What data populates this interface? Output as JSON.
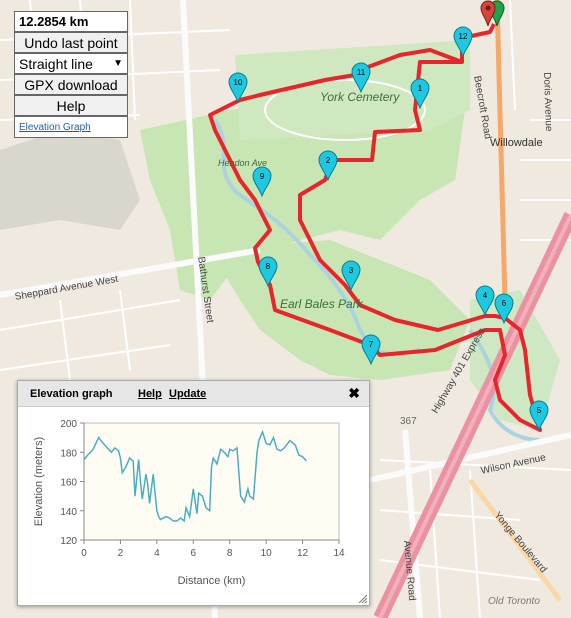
{
  "controls": {
    "distance": "12.2854 km",
    "undo_label": "Undo last point",
    "route_mode": "Straight line",
    "gpx_label": "GPX download",
    "help_label": "Help",
    "elevation_link": "Elevation Graph"
  },
  "map": {
    "labels": {
      "york_cemetery": "York Cemetery",
      "beecroft": "Beecroft Road",
      "willowdale": "Willowdale",
      "doris": "Doris Avenue",
      "hendon": "Hendon Ave",
      "sheppard": "Sheppard Avenue West",
      "bathurst": "Bathurst Street",
      "earl_bales": "Earl Bales Park",
      "hwy401": "Highway 401 Express",
      "wilson": "Wilson Avenue",
      "yonge": "Yonge Boulevard",
      "avenue_road": "Avenue Road",
      "old_toronto": "Old Toronto",
      "route_367": "367"
    },
    "markers": [
      "1",
      "2",
      "3",
      "4",
      "5",
      "6",
      "7",
      "8",
      "9",
      "10",
      "11",
      "12"
    ],
    "colors": {
      "route": "#e8252a",
      "marker": "#1ec8e0",
      "water": "#aad3df",
      "park": "#c8e6b4"
    }
  },
  "elevation_panel": {
    "title": "Elevation graph",
    "help": "Help",
    "update": "Update",
    "close_icon": "close-icon"
  },
  "chart_data": {
    "type": "line",
    "xlabel": "Distance (km)",
    "ylabel": "Elevation (meters)",
    "xlim": [
      0,
      14
    ],
    "ylim": [
      120,
      200
    ],
    "xticks": [
      0,
      2,
      4,
      6,
      8,
      10,
      12,
      14
    ],
    "yticks": [
      120,
      140,
      160,
      180,
      200
    ],
    "grid": false,
    "series": [
      {
        "color": "#4bacc6",
        "x": [
          0,
          0.2,
          0.5,
          0.8,
          1.0,
          1.2,
          1.5,
          1.7,
          1.9,
          2.0,
          2.1,
          2.3,
          2.5,
          2.7,
          2.8,
          3.0,
          3.1,
          3.2,
          3.4,
          3.5,
          3.6,
          3.8,
          4.0,
          4.1,
          4.2,
          4.5,
          4.7,
          4.9,
          5.1,
          5.3,
          5.5,
          5.6,
          5.8,
          6.0,
          6.2,
          6.3,
          6.5,
          6.7,
          6.9,
          7.0,
          7.1,
          7.3,
          7.5,
          7.7,
          7.9,
          8.0,
          8.2,
          8.4,
          8.6,
          8.8,
          9.0,
          9.1,
          9.3,
          9.5,
          9.6,
          9.8,
          10.0,
          10.2,
          10.4,
          10.6,
          10.8,
          11.0,
          11.3,
          11.6,
          11.8,
          12.0,
          12.2
        ],
        "y": [
          175,
          178,
          182,
          190,
          187,
          184,
          180,
          183,
          181,
          176,
          166,
          170,
          176,
          174,
          150,
          175,
          160,
          148,
          165,
          158,
          145,
          165,
          140,
          136,
          134,
          136,
          135,
          133,
          133,
          135,
          133,
          142,
          136,
          155,
          138,
          152,
          150,
          142,
          140,
          170,
          176,
          172,
          182,
          180,
          177,
          182,
          181,
          183,
          150,
          146,
          155,
          150,
          148,
          180,
          188,
          194,
          186,
          185,
          190,
          182,
          181,
          183,
          188,
          185,
          178,
          177,
          174
        ]
      }
    ]
  }
}
